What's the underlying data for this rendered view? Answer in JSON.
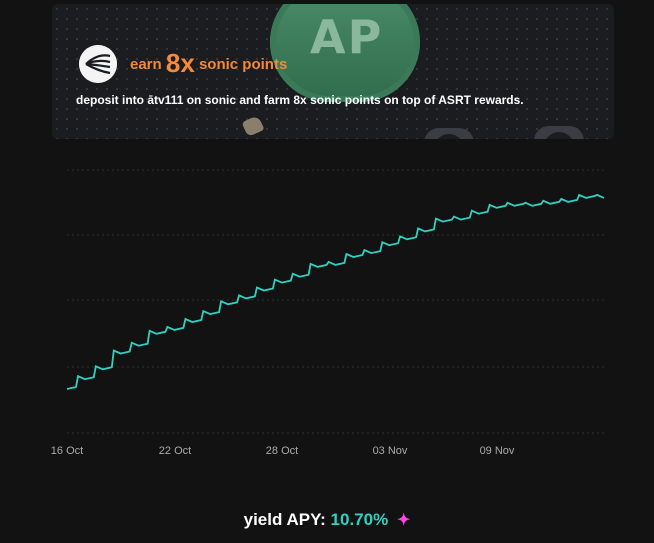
{
  "banner": {
    "headline_prefix": "earn",
    "headline_number": "8x",
    "headline_suffix": "sonic points",
    "subline": "deposit into ātv111 on sonic and farm 8x sonic points on top of ASRT rewards.",
    "coin_text": "AP",
    "colors": {
      "accent": "#f08a3c",
      "background": "#1b1c20"
    }
  },
  "chart_data": {
    "type": "line",
    "x_tick_labels": [
      "16 Oct",
      "22 Oct",
      "28 Oct",
      "03 Nov",
      "09 Nov"
    ],
    "series": [
      {
        "color": "#31d1c2",
        "x": [
          "2024-10-16",
          "2024-10-17",
          "2024-10-18",
          "2024-10-19",
          "2024-10-20",
          "2024-10-21",
          "2024-10-22",
          "2024-10-23",
          "2024-10-24",
          "2024-10-25",
          "2024-10-26",
          "2024-10-27",
          "2024-10-28",
          "2024-10-29",
          "2024-10-30",
          "2024-10-31",
          "2024-11-01",
          "2024-11-02",
          "2024-11-03",
          "2024-11-04",
          "2024-11-05",
          "2024-11-06",
          "2024-11-07",
          "2024-11-08",
          "2024-11-09",
          "2024-11-10",
          "2024-11-11",
          "2024-11-12",
          "2024-11-13",
          "2024-11-14",
          "2024-11-15"
        ],
        "values": [
          0.0,
          0.05,
          0.1,
          0.18,
          0.22,
          0.28,
          0.3,
          0.34,
          0.38,
          0.43,
          0.46,
          0.5,
          0.54,
          0.57,
          0.62,
          0.63,
          0.67,
          0.69,
          0.73,
          0.76,
          0.8,
          0.85,
          0.86,
          0.89,
          0.92,
          0.93,
          0.93,
          0.94,
          0.95,
          0.97,
          0.97
        ]
      }
    ],
    "grid": true,
    "legend": "none"
  },
  "footer": {
    "label": "yield APY:",
    "value": "10.70%",
    "sparkle_icon": "sparkle-icon"
  }
}
